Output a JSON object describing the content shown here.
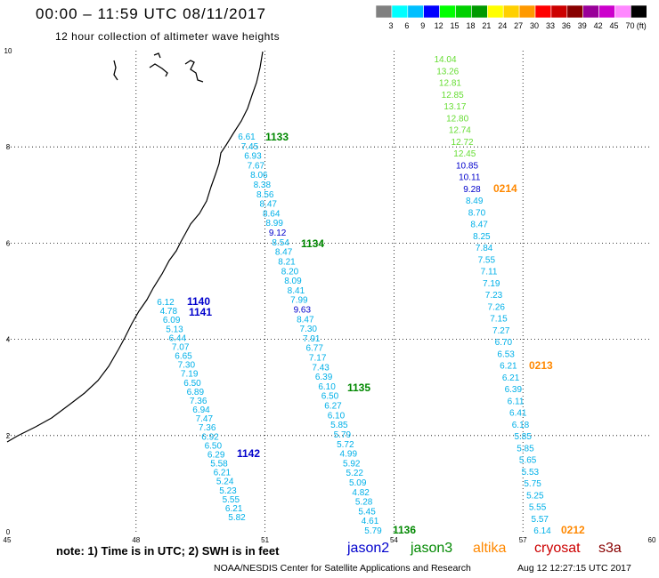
{
  "header": {
    "title": "00:00 – 11:59 UTC 08/11/2017",
    "subtitle": "12 hour collection of altimeter wave heights"
  },
  "legend": {
    "unit": "(ft)",
    "bins": [
      {
        "label": "3",
        "color": "#808080"
      },
      {
        "label": "6",
        "color": "#00ffff"
      },
      {
        "label": "9",
        "color": "#00bfff"
      },
      {
        "label": "12",
        "color": "#0000ff"
      },
      {
        "label": "15",
        "color": "#00ff00"
      },
      {
        "label": "18",
        "color": "#00d000"
      },
      {
        "label": "21",
        "color": "#009900"
      },
      {
        "label": "24",
        "color": "#ffff00"
      },
      {
        "label": "27",
        "color": "#ffd000"
      },
      {
        "label": "30",
        "color": "#ff9900"
      },
      {
        "label": "33",
        "color": "#ff0000"
      },
      {
        "label": "36",
        "color": "#cc0000"
      },
      {
        "label": "39",
        "color": "#880000"
      },
      {
        "label": "42",
        "color": "#990099"
      },
      {
        "label": "45",
        "color": "#cc00cc"
      },
      {
        "label": "70",
        "color": "#ff88ff"
      },
      {
        "label": "",
        "color": "#000000"
      }
    ]
  },
  "axes": {
    "x_ticks": [
      "45",
      "48",
      "51",
      "54",
      "57",
      "60"
    ],
    "y_ticks": [
      "0",
      "2",
      "4",
      "6",
      "8",
      "10"
    ]
  },
  "colors": {
    "cyan_obs": "#00b0e8",
    "blue_obs": "#0000cc",
    "green_obs": "#66dd33",
    "green_id": "#008800",
    "orange_id": "#ff8800"
  },
  "passes": {
    "track_1133": {
      "id": "1133",
      "values": [
        "6.61",
        "7.45",
        "6.93",
        "7.67",
        "8.06",
        "8.38",
        "8.56",
        "8.47",
        "8.64",
        "8.99",
        "9.12",
        "8.54",
        "8.47",
        "8.21",
        "8.20",
        "8.09",
        "8.41",
        "7.99",
        "9.63",
        "8.47",
        "7.30",
        "7.91",
        "6.77",
        "7.17",
        "7.43",
        "6.39",
        "6.10",
        "6.50",
        "6.27",
        "6.10",
        "5.85",
        "5.79",
        "5.72",
        "4.99",
        "5.92",
        "5.22",
        "5.09",
        "4.82",
        "5.28",
        "5.45",
        "4.61",
        "5.79"
      ]
    },
    "id_1134": "1134",
    "id_1135": "1135",
    "id_1136": "1136",
    "track_1140": {
      "id": "1140",
      "id2": "1141",
      "id3": "1142",
      "values": [
        "6.12",
        "4.78",
        "6.09",
        "5.13",
        "6.44",
        "7.07",
        "6.65",
        "7.30",
        "7.19",
        "6.50",
        "6.89",
        "7.36",
        "6.94",
        "7.47",
        "7.36",
        "6.92",
        "6.50",
        "6.29",
        "5.58",
        "6.21",
        "5.24",
        "5.23",
        "5.55",
        "6.21",
        "5.82"
      ]
    },
    "track_0214": {
      "id": "0214",
      "id_mid": "0213",
      "id_end": "0212",
      "values": [
        "14.04",
        "13.26",
        "12.81",
        "12.85",
        "13.17",
        "12.80",
        "12.74",
        "12.72",
        "12.45",
        "10.85",
        "10.11",
        "9.28",
        "8.49",
        "8.70",
        "8.47",
        "8.25",
        "7.84",
        "7.55",
        "7.11",
        "7.19",
        "7.23",
        "7.26",
        "7.15",
        "7.27",
        "6.70",
        "6.53",
        "6.21",
        "6.21",
        "6.39",
        "6.11",
        "6.41",
        "6.18",
        "5.85",
        "5.85",
        "5.65",
        "5.53",
        "5.75",
        "5.25",
        "5.55",
        "5.57",
        "6.14"
      ]
    }
  },
  "footer": {
    "note": "note:  1) Time is in UTC; 2) SWH is in feet",
    "satellites": [
      "jason2",
      "jason3",
      "altika",
      "cryosat",
      "s3a"
    ],
    "credit": "NOAA/NESDIS Center for Satellite Applications and Research",
    "timestamp": "Aug 12 12:27:15 UTC 2017"
  }
}
